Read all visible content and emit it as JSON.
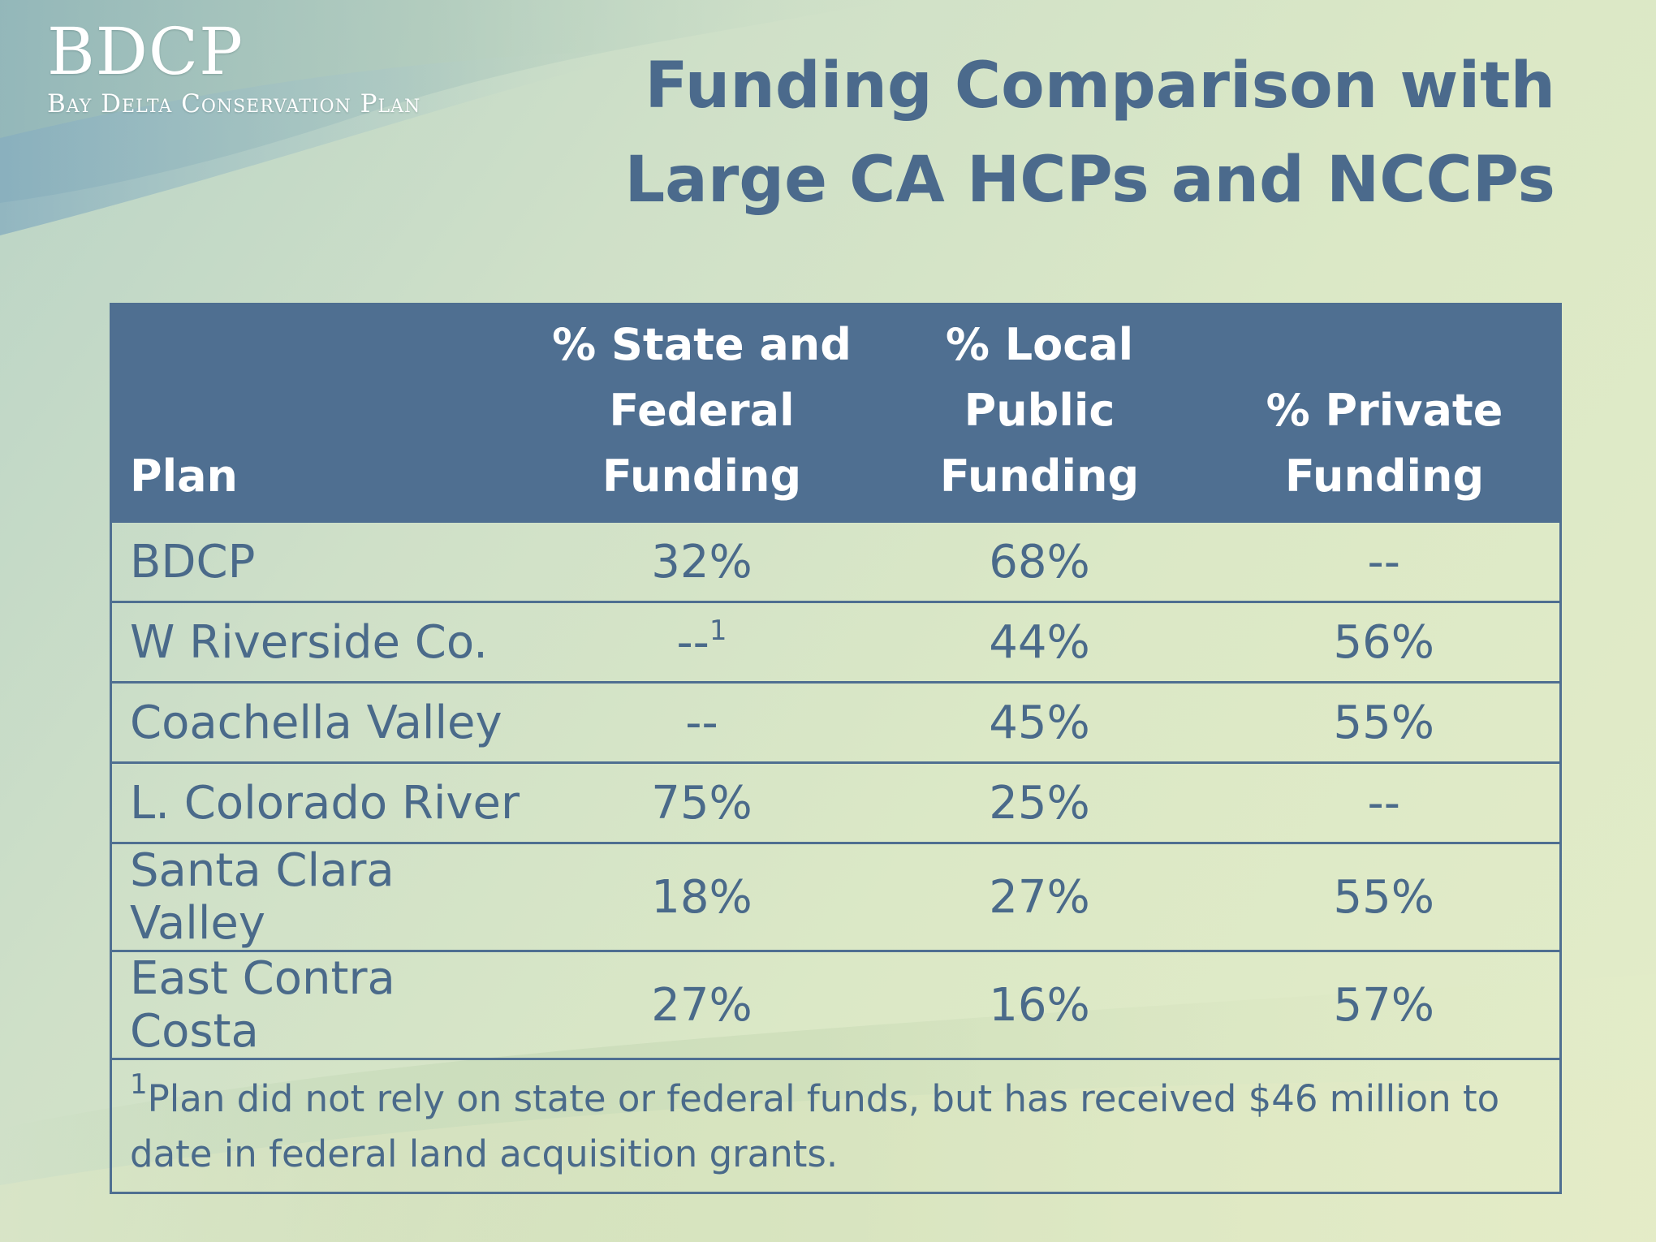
{
  "brand": {
    "logo_mark": "BDCP",
    "logo_subtitle": "Bay Delta Conservation Plan"
  },
  "slide": {
    "title_line1": "Funding Comparison with",
    "title_line2": "Large CA HCPs and NCCPs"
  },
  "table": {
    "headers": {
      "plan": "Plan",
      "state_federal": [
        "% State and",
        "Federal",
        "Funding"
      ],
      "local_public": [
        "% Local",
        "Public",
        "Funding"
      ],
      "private": [
        "% Private",
        "Funding"
      ]
    },
    "rows": [
      {
        "plan": "BDCP",
        "state_federal": "32%",
        "state_federal_note": "",
        "local_public": "68%",
        "private": "--"
      },
      {
        "plan": "W Riverside Co.",
        "state_federal": "--",
        "state_federal_note": "1",
        "local_public": "44%",
        "private": "56%"
      },
      {
        "plan": "Coachella Valley",
        "state_federal": "--",
        "state_federal_note": "",
        "local_public": "45%",
        "private": "55%"
      },
      {
        "plan": "L. Colorado River",
        "state_federal": "75%",
        "state_federal_note": "",
        "local_public": "25%",
        "private": "--"
      },
      {
        "plan": "Santa Clara Valley",
        "state_federal": "18%",
        "state_federal_note": "",
        "local_public": "27%",
        "private": "55%"
      },
      {
        "plan": "East Contra Costa",
        "state_federal": "27%",
        "state_federal_note": "",
        "local_public": "16%",
        "private": "57%"
      }
    ],
    "footnote": {
      "marker": "1",
      "text": "Plan did not rely on state or federal funds, but has received $46 million to date in federal land acquisition grants."
    }
  },
  "colors": {
    "header_fill": "#4f6f91",
    "title_text": "#4b6a8c",
    "body_text": "#4a6a8a",
    "logo_text": "#ffffff"
  }
}
